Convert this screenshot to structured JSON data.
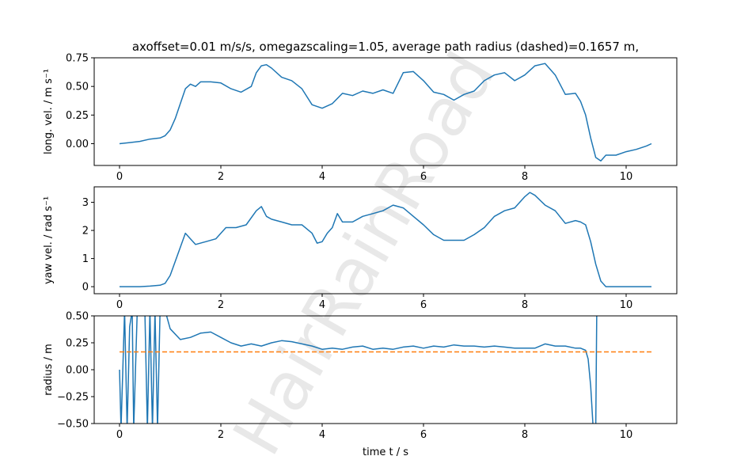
{
  "figure": {
    "title": "axoffset=0.01 m/s/s, omegazscaling=1.05, average path radius (dashed)=0.1657 m,",
    "xlabel": "time t / s",
    "watermark": "HairRainRoad",
    "line_color": "#1f77b4",
    "dashed_color": "#ff7f0e"
  },
  "chart_data": [
    {
      "type": "line",
      "name": "longitudinal-velocity",
      "ylabel": "long. vel. / m s⁻¹",
      "xlim": [
        -0.5,
        11.0
      ],
      "ylim": [
        -0.19,
        0.75
      ],
      "xticks": [
        0,
        2,
        4,
        6,
        8,
        10
      ],
      "yticks": [
        0.0,
        0.25,
        0.5,
        0.75
      ],
      "ytick_labels": [
        "0.00",
        "0.25",
        "0.50",
        "0.75"
      ],
      "series": [
        {
          "x": [
            0,
            0.2,
            0.4,
            0.6,
            0.8,
            0.9,
            1.0,
            1.1,
            1.2,
            1.3,
            1.4,
            1.5,
            1.6,
            1.8,
            2.0,
            2.2,
            2.4,
            2.6,
            2.7,
            2.8,
            2.9,
            3.0,
            3.2,
            3.4,
            3.6,
            3.8,
            4.0,
            4.2,
            4.4,
            4.6,
            4.8,
            5.0,
            5.2,
            5.4,
            5.6,
            5.8,
            6.0,
            6.2,
            6.4,
            6.6,
            6.8,
            7.0,
            7.2,
            7.4,
            7.6,
            7.8,
            8.0,
            8.2,
            8.4,
            8.6,
            8.8,
            9.0,
            9.1,
            9.2,
            9.3,
            9.4,
            9.5,
            9.6,
            9.8,
            10.0,
            10.2,
            10.4,
            10.5
          ],
          "values": [
            0.0,
            0.01,
            0.02,
            0.04,
            0.05,
            0.07,
            0.12,
            0.22,
            0.35,
            0.48,
            0.52,
            0.5,
            0.54,
            0.54,
            0.53,
            0.48,
            0.45,
            0.5,
            0.62,
            0.68,
            0.69,
            0.66,
            0.58,
            0.55,
            0.48,
            0.34,
            0.31,
            0.35,
            0.44,
            0.42,
            0.46,
            0.44,
            0.47,
            0.44,
            0.62,
            0.63,
            0.55,
            0.45,
            0.43,
            0.38,
            0.43,
            0.46,
            0.55,
            0.6,
            0.62,
            0.55,
            0.6,
            0.68,
            0.7,
            0.6,
            0.43,
            0.44,
            0.37,
            0.25,
            0.05,
            -0.12,
            -0.15,
            -0.1,
            -0.1,
            -0.07,
            -0.05,
            -0.02,
            0.0
          ]
        }
      ]
    },
    {
      "type": "line",
      "name": "yaw-velocity",
      "ylabel": "yaw vel. / rad s⁻¹",
      "xlim": [
        -0.5,
        11.0
      ],
      "ylim": [
        -0.25,
        3.55
      ],
      "xticks": [
        0,
        2,
        4,
        6,
        8,
        10
      ],
      "yticks": [
        0,
        1,
        2,
        3
      ],
      "ytick_labels": [
        "0",
        "1",
        "2",
        "3"
      ],
      "series": [
        {
          "x": [
            0,
            0.2,
            0.4,
            0.6,
            0.8,
            0.9,
            1.0,
            1.1,
            1.2,
            1.3,
            1.4,
            1.5,
            1.7,
            1.9,
            2.1,
            2.3,
            2.5,
            2.7,
            2.8,
            2.9,
            3.0,
            3.2,
            3.4,
            3.6,
            3.8,
            3.9,
            4.0,
            4.1,
            4.2,
            4.3,
            4.4,
            4.6,
            4.8,
            5.0,
            5.2,
            5.4,
            5.5,
            5.6,
            5.8,
            6.0,
            6.2,
            6.4,
            6.6,
            6.8,
            7.0,
            7.2,
            7.4,
            7.6,
            7.8,
            8.0,
            8.1,
            8.2,
            8.4,
            8.6,
            8.8,
            9.0,
            9.1,
            9.2,
            9.3,
            9.4,
            9.5,
            9.6,
            9.8,
            10.0,
            10.2,
            10.5
          ],
          "values": [
            0.0,
            0.0,
            0.0,
            0.02,
            0.05,
            0.12,
            0.4,
            0.9,
            1.4,
            1.9,
            1.7,
            1.5,
            1.6,
            1.7,
            2.1,
            2.1,
            2.2,
            2.7,
            2.85,
            2.5,
            2.4,
            2.3,
            2.2,
            2.2,
            1.9,
            1.55,
            1.6,
            1.9,
            2.1,
            2.6,
            2.3,
            2.3,
            2.5,
            2.6,
            2.7,
            2.9,
            2.85,
            2.8,
            2.5,
            2.2,
            1.85,
            1.65,
            1.65,
            1.65,
            1.85,
            2.1,
            2.5,
            2.7,
            2.8,
            3.2,
            3.35,
            3.25,
            2.9,
            2.7,
            2.25,
            2.35,
            2.3,
            2.2,
            1.6,
            0.8,
            0.2,
            0.0,
            0.0,
            0.0,
            0.0,
            0.0
          ]
        }
      ]
    },
    {
      "type": "line",
      "name": "radius",
      "ylabel": "radius / m",
      "xlim": [
        -0.5,
        11.0
      ],
      "ylim": [
        -0.5,
        0.5
      ],
      "xticks": [
        0,
        2,
        4,
        6,
        8,
        10
      ],
      "yticks": [
        -0.5,
        -0.25,
        0.0,
        0.25,
        0.5
      ],
      "ytick_labels": [
        "−0.50",
        "−0.25",
        "0.00",
        "0.25",
        "0.50"
      ],
      "series": [
        {
          "x": [
            0,
            0.03,
            0.1,
            0.15,
            0.2,
            0.25,
            0.28,
            0.35,
            0.45,
            0.5,
            0.55,
            0.6,
            0.65,
            0.7,
            0.75,
            0.8,
            0.9,
            1.0,
            1.2,
            1.4,
            1.6,
            1.8,
            2.0,
            2.2,
            2.4,
            2.6,
            2.8,
            3.0,
            3.2,
            3.4,
            3.6,
            3.8,
            4.0,
            4.2,
            4.4,
            4.6,
            4.8,
            5.0,
            5.2,
            5.4,
            5.6,
            5.8,
            6.0,
            6.2,
            6.4,
            6.6,
            6.8,
            7.0,
            7.2,
            7.4,
            7.6,
            7.8,
            8.0,
            8.2,
            8.4,
            8.6,
            8.8,
            9.0,
            9.1,
            9.2,
            9.25,
            9.3,
            9.35,
            9.4,
            9.42,
            9.45
          ],
          "values": [
            0.0,
            -0.55,
            0.55,
            -0.55,
            0.4,
            0.55,
            -0.55,
            0.55,
            0.55,
            0.55,
            -0.55,
            0.55,
            -0.55,
            0.55,
            -0.55,
            0.55,
            0.55,
            0.38,
            0.28,
            0.3,
            0.34,
            0.35,
            0.3,
            0.25,
            0.22,
            0.24,
            0.22,
            0.25,
            0.27,
            0.26,
            0.24,
            0.22,
            0.19,
            0.2,
            0.19,
            0.21,
            0.22,
            0.19,
            0.2,
            0.19,
            0.21,
            0.22,
            0.2,
            0.22,
            0.21,
            0.23,
            0.22,
            0.22,
            0.21,
            0.22,
            0.21,
            0.2,
            0.2,
            0.2,
            0.24,
            0.22,
            0.22,
            0.2,
            0.2,
            0.18,
            0.1,
            -0.15,
            -0.55,
            -0.55,
            0.55,
            0.55
          ]
        },
        {
          "name": "average path radius",
          "style": "dashed",
          "x": [
            0,
            10.5
          ],
          "values": [
            0.1657,
            0.1657
          ]
        }
      ]
    }
  ]
}
